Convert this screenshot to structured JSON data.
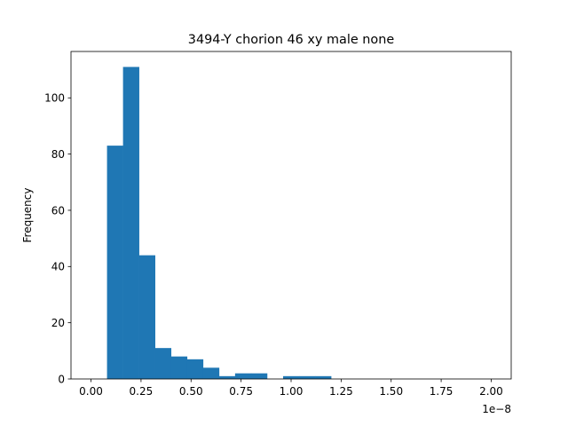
{
  "chart_data": {
    "type": "bar",
    "title": "3494-Y chorion 46 xy male none",
    "xlabel": "",
    "ylabel": "Frequency",
    "x_offset_text": "1e−8",
    "x_scale": 1e-08,
    "bin_edges": [
      0.08,
      0.16,
      0.24,
      0.32,
      0.4,
      0.48,
      0.56,
      0.64,
      0.72,
      0.8,
      0.88,
      0.96,
      1.04,
      1.12,
      1.2,
      1.28,
      1.36,
      1.44,
      1.52,
      1.6,
      1.68,
      1.76,
      1.84,
      1.92,
      2.0
    ],
    "counts": [
      83,
      111,
      44,
      11,
      8,
      7,
      4,
      1,
      2,
      2,
      0,
      1,
      1,
      1,
      0,
      0,
      0,
      0,
      0,
      0,
      0,
      0,
      0,
      0
    ],
    "xlim": [
      -0.1,
      2.1
    ],
    "ylim": [
      0,
      116.5
    ],
    "x_ticks": [
      0.0,
      0.25,
      0.5,
      0.75,
      1.0,
      1.25,
      1.5,
      1.75,
      2.0
    ],
    "x_tick_labels": [
      "0.00",
      "0.25",
      "0.50",
      "0.75",
      "1.00",
      "1.25",
      "1.50",
      "1.75",
      "2.00"
    ],
    "y_ticks": [
      0,
      20,
      40,
      60,
      80,
      100
    ],
    "y_tick_labels": [
      "0",
      "20",
      "40",
      "60",
      "80",
      "100"
    ],
    "bar_color": "#1f77b4",
    "grid": false,
    "legend": "none"
  }
}
